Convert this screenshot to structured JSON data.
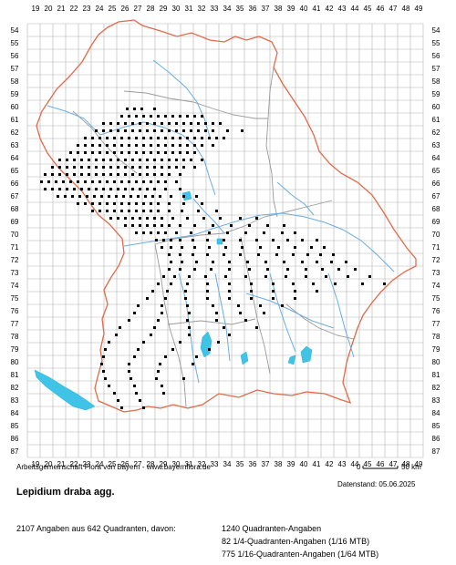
{
  "map": {
    "x_ticks": [
      "19",
      "20",
      "21",
      "22",
      "23",
      "24",
      "25",
      "26",
      "27",
      "28",
      "29",
      "30",
      "31",
      "32",
      "33",
      "34",
      "35",
      "36",
      "37",
      "38",
      "39",
      "40",
      "41",
      "42",
      "43",
      "44",
      "45",
      "46",
      "47",
      "48",
      "49"
    ],
    "y_ticks": [
      "54",
      "55",
      "56",
      "57",
      "58",
      "59",
      "60",
      "61",
      "62",
      "63",
      "64",
      "65",
      "66",
      "67",
      "68",
      "69",
      "70",
      "71",
      "72",
      "73",
      "74",
      "75",
      "76",
      "77",
      "78",
      "79",
      "80",
      "81",
      "82",
      "83",
      "84",
      "85",
      "86",
      "87"
    ],
    "colors": {
      "grid": "#b4b4b4",
      "border": "#e06a4a",
      "district": "#9a9a9a",
      "river": "#6aaee0",
      "lake": "#3fc4e8",
      "marker": "#000000"
    }
  },
  "footer": {
    "credit": "Arbeitsgemeinschaft Flora von Bayern - www.bayernflora.de",
    "scale_zero": "0",
    "scale_label": "50 km",
    "date": "Datenstand: 05.06.2025",
    "species": "Lepidium draba agg.",
    "summary": "2107 Angaben aus 642 Quadranten, davon:",
    "stat1": "1240 Quadranten-Angaben",
    "stat2": "82 1/4-Quadranten-Angaben (1/16 MTB)",
    "stat3": "775 1/16-Quadranten-Angaben (1/64 MTB)"
  }
}
